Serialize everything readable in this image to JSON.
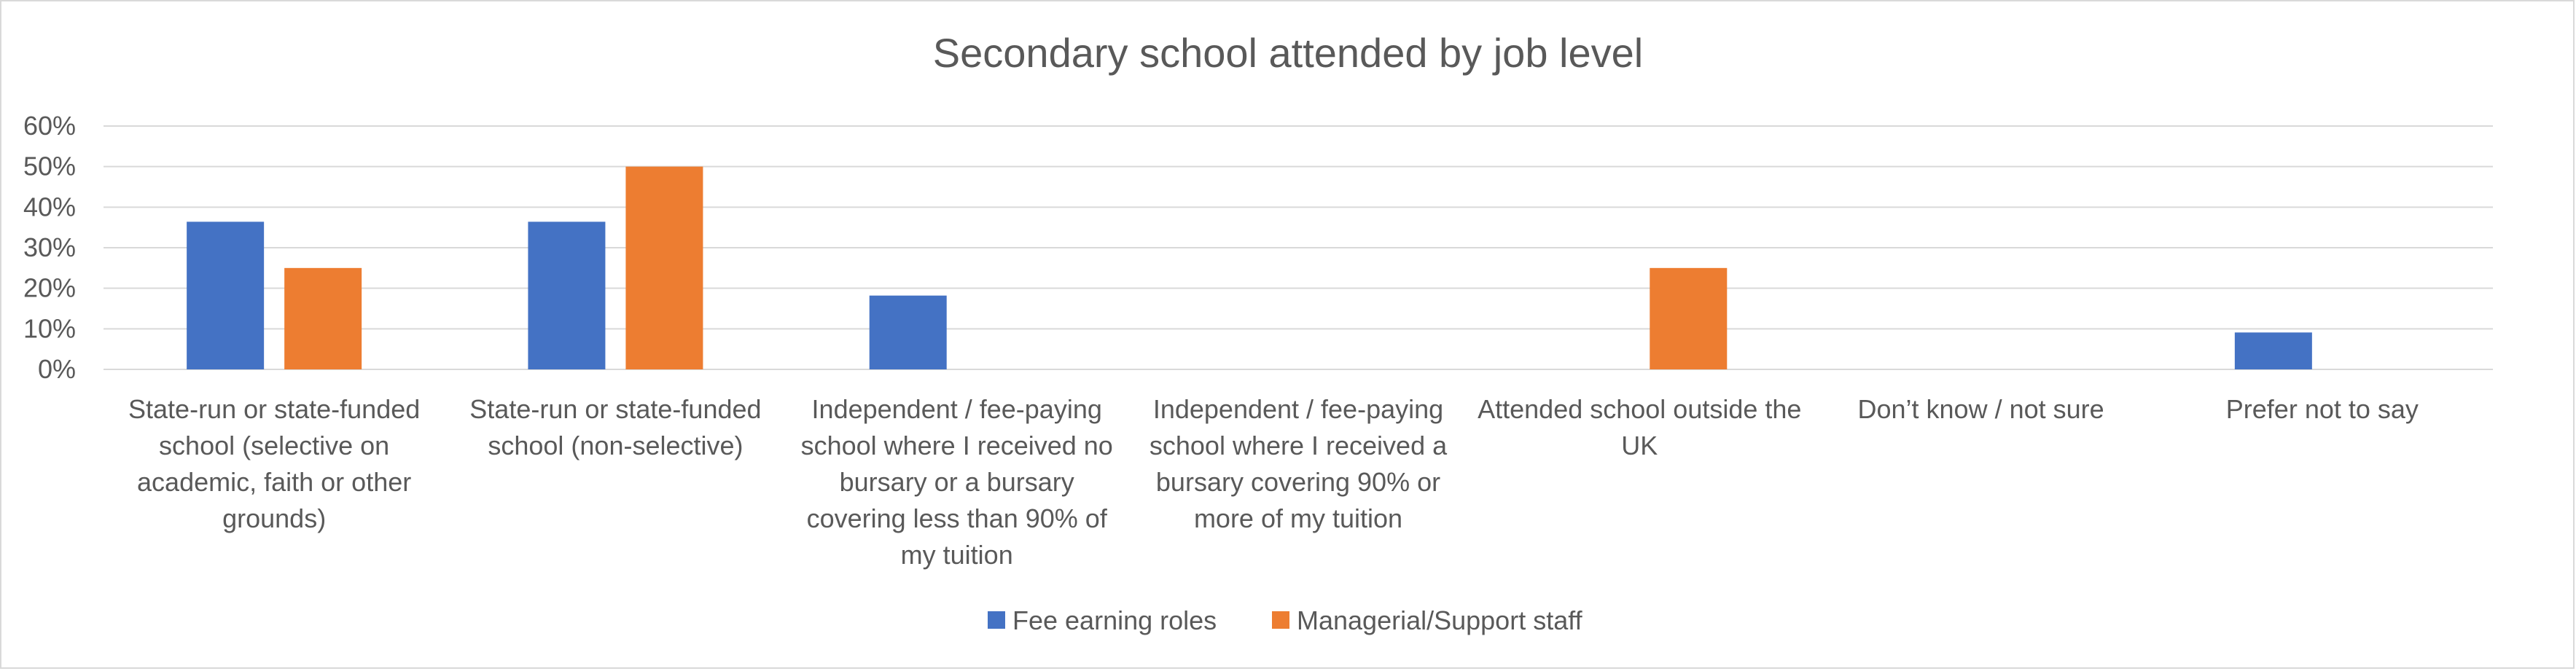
{
  "chart_data": {
    "type": "bar",
    "title": "Secondary school attended by job level",
    "xlabel": "",
    "ylabel": "",
    "ylim": [
      0,
      0.6
    ],
    "yticks": [
      "0%",
      "10%",
      "20%",
      "30%",
      "40%",
      "50%",
      "60%"
    ],
    "grid": true,
    "legend_position": "bottom",
    "categories": [
      [
        "State-run or state-funded",
        "school (selective on",
        "academic, faith or other",
        "grounds)"
      ],
      [
        "State-run or state-funded",
        "school (non-selective)"
      ],
      [
        "Independent / fee-paying",
        "school where I received no",
        "bursary or a bursary",
        "covering less than 90% of",
        "my tuition"
      ],
      [
        "Independent / fee-paying",
        "school where I received a",
        "bursary covering 90% or",
        "more of my tuition"
      ],
      [
        "Attended school outside the",
        "UK"
      ],
      [
        "Don’t know / not sure"
      ],
      [
        "Prefer not to say"
      ]
    ],
    "series": [
      {
        "name": "Fee earning roles",
        "color": "#4472c4",
        "values": [
          0.364,
          0.364,
          0.182,
          0,
          0,
          0,
          0.091
        ]
      },
      {
        "name": "Managerial/Support staff",
        "color": "#ed7d31",
        "values": [
          0.25,
          0.5,
          0,
          0,
          0.25,
          0,
          0
        ]
      }
    ]
  }
}
